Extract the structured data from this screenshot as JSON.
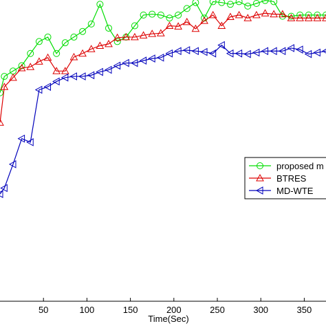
{
  "chart_data": {
    "type": "line",
    "xlabel": "Time(Sec)",
    "ylabel": "",
    "title": "",
    "xlim": [
      0,
      375
    ],
    "ylim": [
      0,
      1
    ],
    "x_ticks": [
      50,
      100,
      150,
      200,
      250,
      300,
      350
    ],
    "grid": false,
    "legend_position": "right",
    "x": [
      0,
      5,
      15,
      25,
      35,
      45,
      55,
      65,
      75,
      85,
      95,
      105,
      115,
      125,
      135,
      145,
      155,
      165,
      175,
      185,
      195,
      205,
      215,
      225,
      235,
      245,
      255,
      265,
      275,
      285,
      295,
      305,
      315,
      325,
      335,
      345,
      355,
      365,
      375
    ],
    "series": [
      {
        "name": "proposed m",
        "color": "#00dd00",
        "marker": "circle",
        "values": [
          0.7,
          0.755,
          0.773,
          0.791,
          0.832,
          0.872,
          0.887,
          0.832,
          0.868,
          0.887,
          0.906,
          0.931,
          0.997,
          0.917,
          0.872,
          0.887,
          0.925,
          0.961,
          0.964,
          0.961,
          0.951,
          0.961,
          0.983,
          1.003,
          0.951,
          1.006,
          1.003,
          0.997,
          1.006,
          0.991,
          1.0,
          1.01,
          1.006,
          0.957,
          0.957,
          0.961,
          0.961,
          0.961,
          0.961
        ]
      },
      {
        "name": "BTRES",
        "color": "#dd0000",
        "marker": "triangle-up",
        "values": [
          0.6,
          0.72,
          0.751,
          0.783,
          0.787,
          0.805,
          0.818,
          0.773,
          0.773,
          0.82,
          0.832,
          0.847,
          0.858,
          0.864,
          0.885,
          0.887,
          0.887,
          0.893,
          0.898,
          0.9,
          0.925,
          0.923,
          0.938,
          0.915,
          0.942,
          0.961,
          0.925,
          0.955,
          0.961,
          0.951,
          0.961,
          0.967,
          0.964,
          0.964,
          0.951,
          0.951,
          0.951,
          0.951,
          0.951
        ]
      },
      {
        "name": "MD-WTE",
        "color": "#0000bb",
        "marker": "triangle-left",
        "values": [
          0.36,
          0.38,
          0.46,
          0.546,
          0.534,
          0.71,
          0.72,
          0.738,
          0.751,
          0.755,
          0.755,
          0.759,
          0.77,
          0.777,
          0.791,
          0.8,
          0.8,
          0.808,
          0.815,
          0.818,
          0.832,
          0.84,
          0.843,
          0.84,
          0.837,
          0.832,
          0.86,
          0.832,
          0.832,
          0.83,
          0.835,
          0.84,
          0.84,
          0.84,
          0.85,
          0.845,
          0.83,
          0.835,
          0.84
        ]
      }
    ]
  }
}
